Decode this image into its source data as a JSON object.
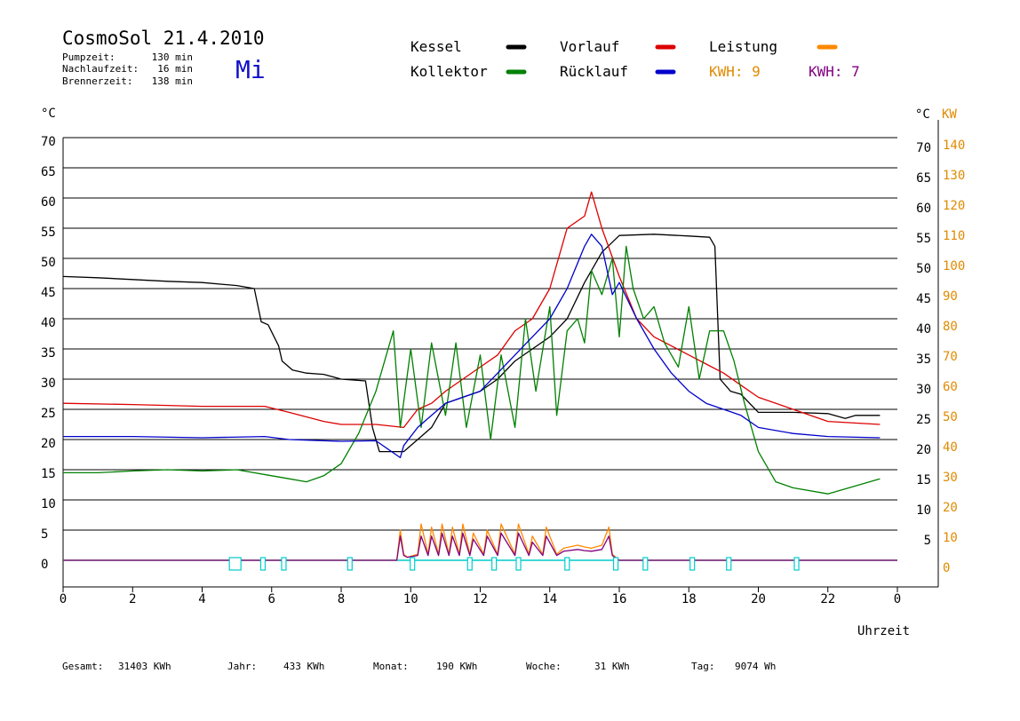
{
  "header": {
    "title": "CosmoSol 21.4.2010",
    "day": "Mi",
    "stats": [
      {
        "label": "Pumpzeit:",
        "value": "130 min"
      },
      {
        "label": "Nachlaufzeit:",
        "value": "16 min"
      },
      {
        "label": "Brennerzeit:",
        "value": "138 min"
      }
    ]
  },
  "legend": {
    "kessel": "Kessel",
    "vorlauf": "Vorlauf",
    "leistung": "Leistung",
    "kollektor": "Kollektor",
    "ruecklauf": "Rücklauf",
    "kwh_a": "KWH: 9",
    "kwh_b": "KWH: 7"
  },
  "axes": {
    "left_unit": "°C",
    "right_unit": "°C",
    "kw_unit": "KW",
    "x_label": "Uhrzeit"
  },
  "footer": [
    {
      "label": "Gesamt:",
      "value": "31403 KWh"
    },
    {
      "label": "Jahr:",
      "value": "433 KWh"
    },
    {
      "label": "Monat:",
      "value": "190 KWh"
    },
    {
      "label": "Woche:",
      "value": "31 KWh"
    },
    {
      "label": "Tag:",
      "value": "9074 Wh"
    }
  ],
  "colors": {
    "kessel": "#000000",
    "vorlauf": "#dd0000",
    "leistung": "#ff8800",
    "kollektor": "#008000",
    "ruecklauf": "#0000cc",
    "leistung2": "#800080",
    "pump": "#00cccc",
    "kwh_a": "#e08a00",
    "kwh_b": "#800080",
    "day": "#1010c8"
  },
  "chart_data": {
    "type": "line",
    "x_range": [
      0,
      24
    ],
    "x_ticks": [
      "0",
      "2",
      "4",
      "6",
      "8",
      "10",
      "12",
      "14",
      "16",
      "18",
      "20",
      "22",
      "0"
    ],
    "y_left_range": [
      0,
      70
    ],
    "y_left_ticks": [
      "0",
      "5",
      "10",
      "15",
      "20",
      "25",
      "30",
      "35",
      "40",
      "45",
      "50",
      "55",
      "60",
      "65",
      "70"
    ],
    "y_right_ticks": [
      "",
      "5",
      "10",
      "15",
      "20",
      "25",
      "30",
      "35",
      "40",
      "45",
      "50",
      "55",
      "60",
      "65",
      "70"
    ],
    "y_kw_ticks": [
      "0",
      "10",
      "20",
      "30",
      "40",
      "50",
      "60",
      "70",
      "80",
      "90",
      "100",
      "110",
      "120",
      "130",
      "140"
    ],
    "grid": true,
    "series": [
      {
        "name": "Kessel",
        "key": "kessel",
        "x": [
          0,
          1,
          2,
          3,
          4,
          5,
          5.5,
          5.7,
          5.9,
          6.2,
          6.3,
          6.6,
          7,
          7.5,
          8,
          8.7,
          8.9,
          9.1,
          9.5,
          9.8,
          10.2,
          10.6,
          11,
          11.5,
          12,
          12.5,
          13,
          13.5,
          14,
          14.5,
          15,
          15.5,
          16,
          17,
          18,
          18.6,
          18.75,
          18.9,
          19.2,
          19.5,
          20,
          21,
          22,
          22.5,
          22.8,
          23.5
        ],
        "values": [
          47,
          46.8,
          46.5,
          46.2,
          46,
          45.5,
          45,
          39.5,
          39,
          35.5,
          33,
          31.5,
          31,
          30.8,
          30,
          29.7,
          22,
          18,
          18,
          18,
          20,
          22,
          26,
          27,
          28,
          30,
          33,
          35,
          37,
          40,
          46,
          51,
          53.8,
          54,
          53.7,
          53.5,
          52,
          30,
          28,
          27.5,
          24.5,
          24.5,
          24.3,
          23.5,
          24,
          24
        ]
      },
      {
        "name": "Vorlauf",
        "key": "vorlauf",
        "x": [
          0,
          2,
          4,
          5.8,
          6.5,
          7.5,
          8,
          9,
          9.8,
          10.2,
          10.6,
          11,
          11.5,
          12,
          12.5,
          13,
          13.5,
          14,
          14.5,
          15,
          15.2,
          15.5,
          16,
          16.5,
          17,
          17.5,
          18,
          18.5,
          19,
          19.5,
          20,
          21,
          22,
          23.5
        ],
        "values": [
          26,
          25.8,
          25.5,
          25.5,
          24.5,
          23,
          22.5,
          22.5,
          22,
          25,
          26,
          28,
          30,
          32,
          34,
          38,
          40,
          45,
          55,
          57,
          61,
          55,
          47,
          40,
          37,
          35.5,
          34,
          32.5,
          31,
          29,
          27,
          25,
          23,
          22.5
        ]
      },
      {
        "name": "Kollektor",
        "key": "kollektor",
        "x": [
          0,
          1,
          2,
          3,
          4,
          5,
          6,
          6.5,
          7,
          7.5,
          8,
          8.5,
          9,
          9.2,
          9.5,
          9.7,
          10,
          10.3,
          10.6,
          11,
          11.3,
          11.6,
          12,
          12.3,
          12.6,
          13,
          13.3,
          13.6,
          14,
          14.2,
          14.5,
          14.8,
          15,
          15.2,
          15.5,
          15.8,
          16,
          16.2,
          16.4,
          16.7,
          17,
          17.3,
          17.7,
          18,
          18.3,
          18.6,
          19,
          19.3,
          19.6,
          20,
          20.5,
          21,
          22,
          23.5
        ],
        "values": [
          14.5,
          14.5,
          14.8,
          15,
          14.8,
          15,
          14,
          13.5,
          13,
          14,
          16,
          21,
          28,
          32,
          38,
          22,
          35,
          22,
          36,
          24,
          36,
          22,
          34,
          20,
          34,
          22,
          40,
          28,
          42,
          24,
          38,
          40,
          36,
          48,
          44,
          50,
          37,
          52,
          45,
          40,
          42,
          36,
          32,
          42,
          30,
          38,
          38,
          33,
          26,
          18,
          13,
          12,
          11,
          13.5
        ]
      },
      {
        "name": "Rücklauf",
        "key": "ruecklauf",
        "x": [
          0,
          2,
          4,
          5.8,
          6.5,
          7.5,
          8,
          9,
          9.7,
          9.8,
          10.2,
          10.6,
          11,
          11.5,
          12,
          12.5,
          13,
          13.5,
          14,
          14.5,
          15,
          15.2,
          15.5,
          15.8,
          16,
          16.5,
          17,
          17.5,
          18,
          18.5,
          19,
          19.5,
          20,
          21,
          22,
          23.5
        ],
        "values": [
          20.5,
          20.5,
          20.3,
          20.5,
          20,
          19.8,
          19.7,
          19.8,
          17,
          19,
          22,
          24,
          26,
          27,
          28,
          31,
          34,
          37,
          40,
          45,
          52,
          54,
          52,
          44,
          46,
          40,
          35,
          31,
          28,
          26,
          25,
          24,
          22,
          21,
          20.5,
          20.3
        ]
      },
      {
        "name": "Leistung",
        "key": "leistung",
        "x": [
          0,
          9.6,
          9.7,
          9.8,
          9.9,
          10.2,
          10.3,
          10.5,
          10.6,
          10.8,
          10.9,
          11.1,
          11.2,
          11.4,
          11.5,
          11.7,
          11.8,
          12.1,
          12.2,
          12.5,
          12.6,
          13,
          13.1,
          13.4,
          13.5,
          13.8,
          13.9,
          14.2,
          14.4,
          14.8,
          15,
          15.2,
          15.5,
          15.7,
          15.8,
          16,
          24
        ],
        "values": [
          0,
          0,
          5,
          1,
          0.5,
          1,
          6,
          1,
          5.5,
          1,
          6,
          1,
          5.5,
          1,
          6,
          1,
          4.5,
          1,
          5,
          1,
          6,
          1,
          6,
          1,
          4,
          1,
          5.5,
          1,
          2,
          2.5,
          2.2,
          2,
          2.5,
          5.5,
          1,
          0,
          0
        ]
      },
      {
        "name": "KWH: 7",
        "key": "leistung2",
        "x": [
          0,
          9.6,
          9.7,
          9.8,
          9.9,
          10.2,
          10.3,
          10.5,
          10.6,
          10.8,
          10.9,
          11.1,
          11.2,
          11.4,
          11.5,
          11.7,
          11.8,
          12.1,
          12.2,
          12.5,
          12.6,
          13,
          13.1,
          13.4,
          13.5,
          13.8,
          13.9,
          14.2,
          14.4,
          14.8,
          15,
          15.2,
          15.5,
          15.7,
          15.8,
          16,
          24
        ],
        "values": [
          0,
          0,
          4,
          0.8,
          0.5,
          0.8,
          4,
          0.8,
          4,
          0.8,
          4.5,
          0.8,
          4,
          0.8,
          4.5,
          0.8,
          3.5,
          0.8,
          4,
          0.8,
          4.5,
          0.8,
          4.5,
          0.8,
          3,
          0.8,
          4,
          0.8,
          1.5,
          1.8,
          1.6,
          1.5,
          1.8,
          4,
          0.8,
          0,
          0
        ]
      }
    ],
    "pump_markers": [
      4.95,
      5.75,
      6.35,
      8.25,
      10.05,
      11.7,
      12.4,
      13.1,
      14.5,
      15.9,
      16.75,
      18.1,
      19.15,
      21.1
    ]
  }
}
